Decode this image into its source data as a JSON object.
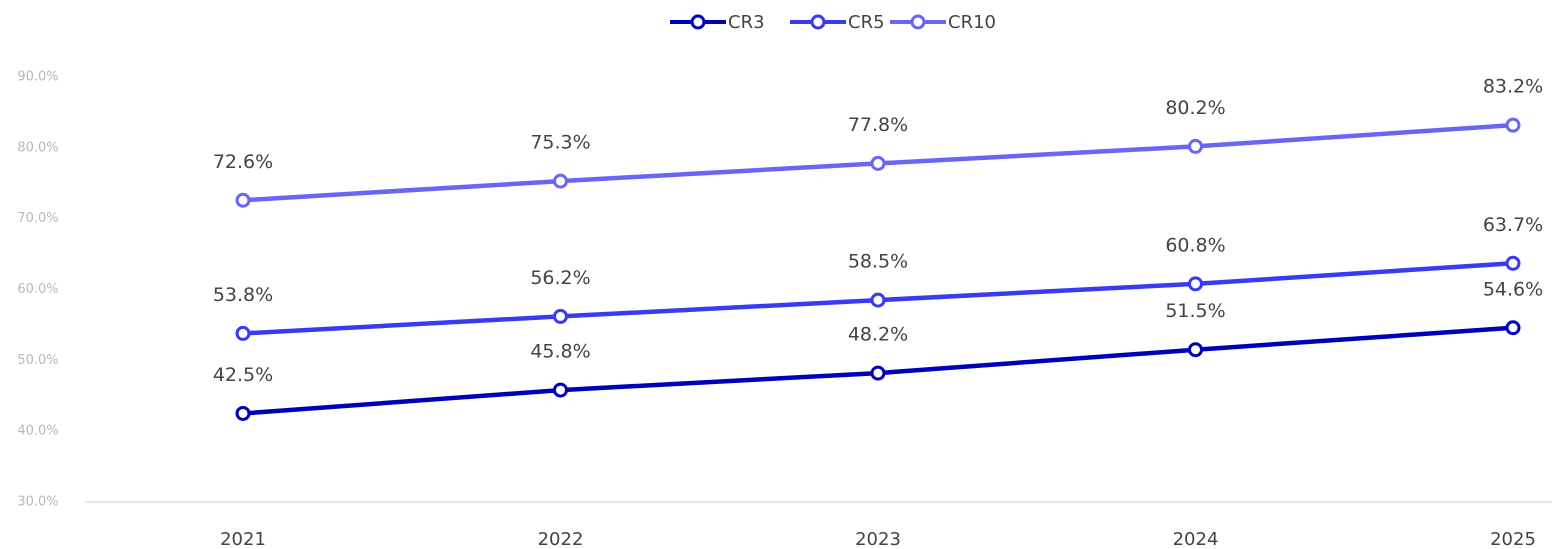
{
  "chart_data": {
    "type": "line",
    "categories": [
      "2021",
      "2022",
      "2023",
      "2024",
      "2025"
    ],
    "series": [
      {
        "name": "CR3",
        "color": "#0000b8",
        "values": [
          42.5,
          45.8,
          48.2,
          51.5,
          54.6
        ],
        "value_labels": [
          "42.5%",
          "45.8%",
          "48.2%",
          "51.5%",
          "54.6%"
        ]
      },
      {
        "name": "CR5",
        "color": "#3a3af0",
        "values": [
          53.8,
          56.2,
          58.5,
          60.8,
          63.7
        ],
        "value_labels": [
          "53.8%",
          "56.2%",
          "58.5%",
          "60.8%",
          "63.7%"
        ]
      },
      {
        "name": "CR10",
        "color": "#6a66f5",
        "values": [
          72.6,
          75.3,
          77.8,
          80.2,
          83.2
        ],
        "value_labels": [
          "72.6%",
          "75.3%",
          "77.8%",
          "80.2%",
          "83.2%"
        ]
      }
    ],
    "ylim": [
      30,
      90
    ],
    "yticks": [
      {
        "value": 30,
        "label": "30.0%"
      },
      {
        "value": 40,
        "label": "40.0%"
      },
      {
        "value": 50,
        "label": "50.0%"
      },
      {
        "value": 60,
        "label": "60.0%"
      },
      {
        "value": 70,
        "label": "70.0%"
      },
      {
        "value": 80,
        "label": "80.0%"
      },
      {
        "value": 90,
        "label": "90.0%"
      }
    ],
    "legend": "top"
  }
}
